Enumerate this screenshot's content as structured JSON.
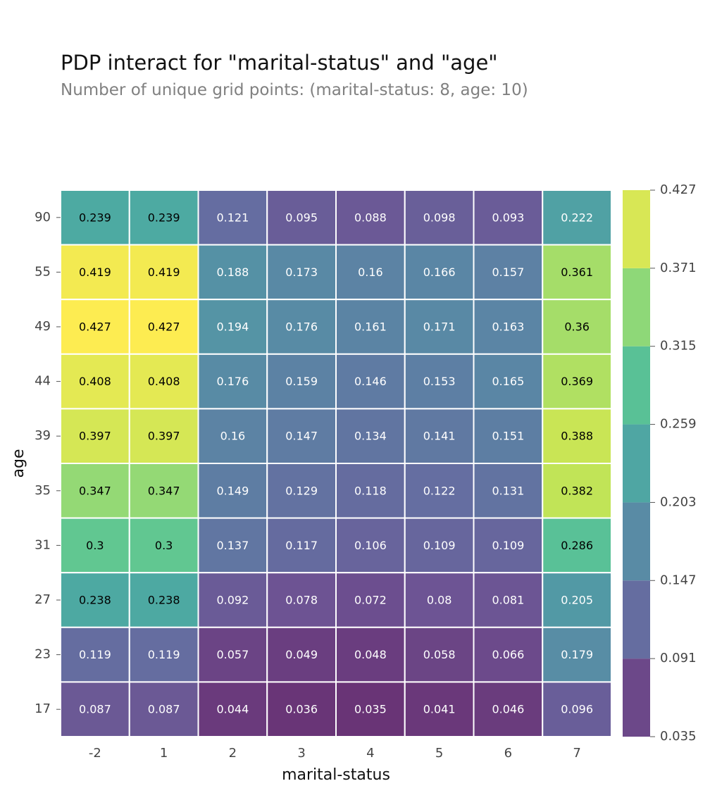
{
  "chart_data": {
    "type": "heatmap",
    "title": "PDP interact for \"marital-status\" and \"age\"",
    "subtitle": "Number of unique grid points: (marital-status: 8, age: 10)",
    "xlabel": "marital-status",
    "ylabel": "age",
    "x_ticks": [
      "-2",
      "1",
      "2",
      "3",
      "4",
      "5",
      "6",
      "7"
    ],
    "y_ticks_top_to_bottom": [
      "90",
      "55",
      "49",
      "44",
      "39",
      "35",
      "31",
      "27",
      "23",
      "17"
    ],
    "values_top_to_bottom": [
      [
        "0.239",
        "0.239",
        "0.121",
        "0.095",
        "0.088",
        "0.098",
        "0.093",
        "0.222"
      ],
      [
        "0.419",
        "0.419",
        "0.188",
        "0.173",
        "0.16",
        "0.166",
        "0.157",
        "0.361"
      ],
      [
        "0.427",
        "0.427",
        "0.194",
        "0.176",
        "0.161",
        "0.171",
        "0.163",
        "0.36"
      ],
      [
        "0.408",
        "0.408",
        "0.176",
        "0.159",
        "0.146",
        "0.153",
        "0.165",
        "0.369"
      ],
      [
        "0.397",
        "0.397",
        "0.16",
        "0.147",
        "0.134",
        "0.141",
        "0.151",
        "0.388"
      ],
      [
        "0.347",
        "0.347",
        "0.149",
        "0.129",
        "0.118",
        "0.122",
        "0.131",
        "0.382"
      ],
      [
        "0.3",
        "0.3",
        "0.137",
        "0.117",
        "0.106",
        "0.109",
        "0.109",
        "0.286"
      ],
      [
        "0.238",
        "0.238",
        "0.092",
        "0.078",
        "0.072",
        "0.08",
        "0.081",
        "0.205"
      ],
      [
        "0.119",
        "0.119",
        "0.057",
        "0.049",
        "0.048",
        "0.058",
        "0.066",
        "0.179"
      ],
      [
        "0.087",
        "0.087",
        "0.044",
        "0.036",
        "0.035",
        "0.041",
        "0.046",
        "0.096"
      ]
    ],
    "colorbar": {
      "ticks": [
        "0.035",
        "0.091",
        "0.147",
        "0.203",
        "0.259",
        "0.315",
        "0.371",
        "0.427"
      ],
      "range": [
        0.035,
        0.427
      ],
      "colormap": "viridis"
    }
  }
}
